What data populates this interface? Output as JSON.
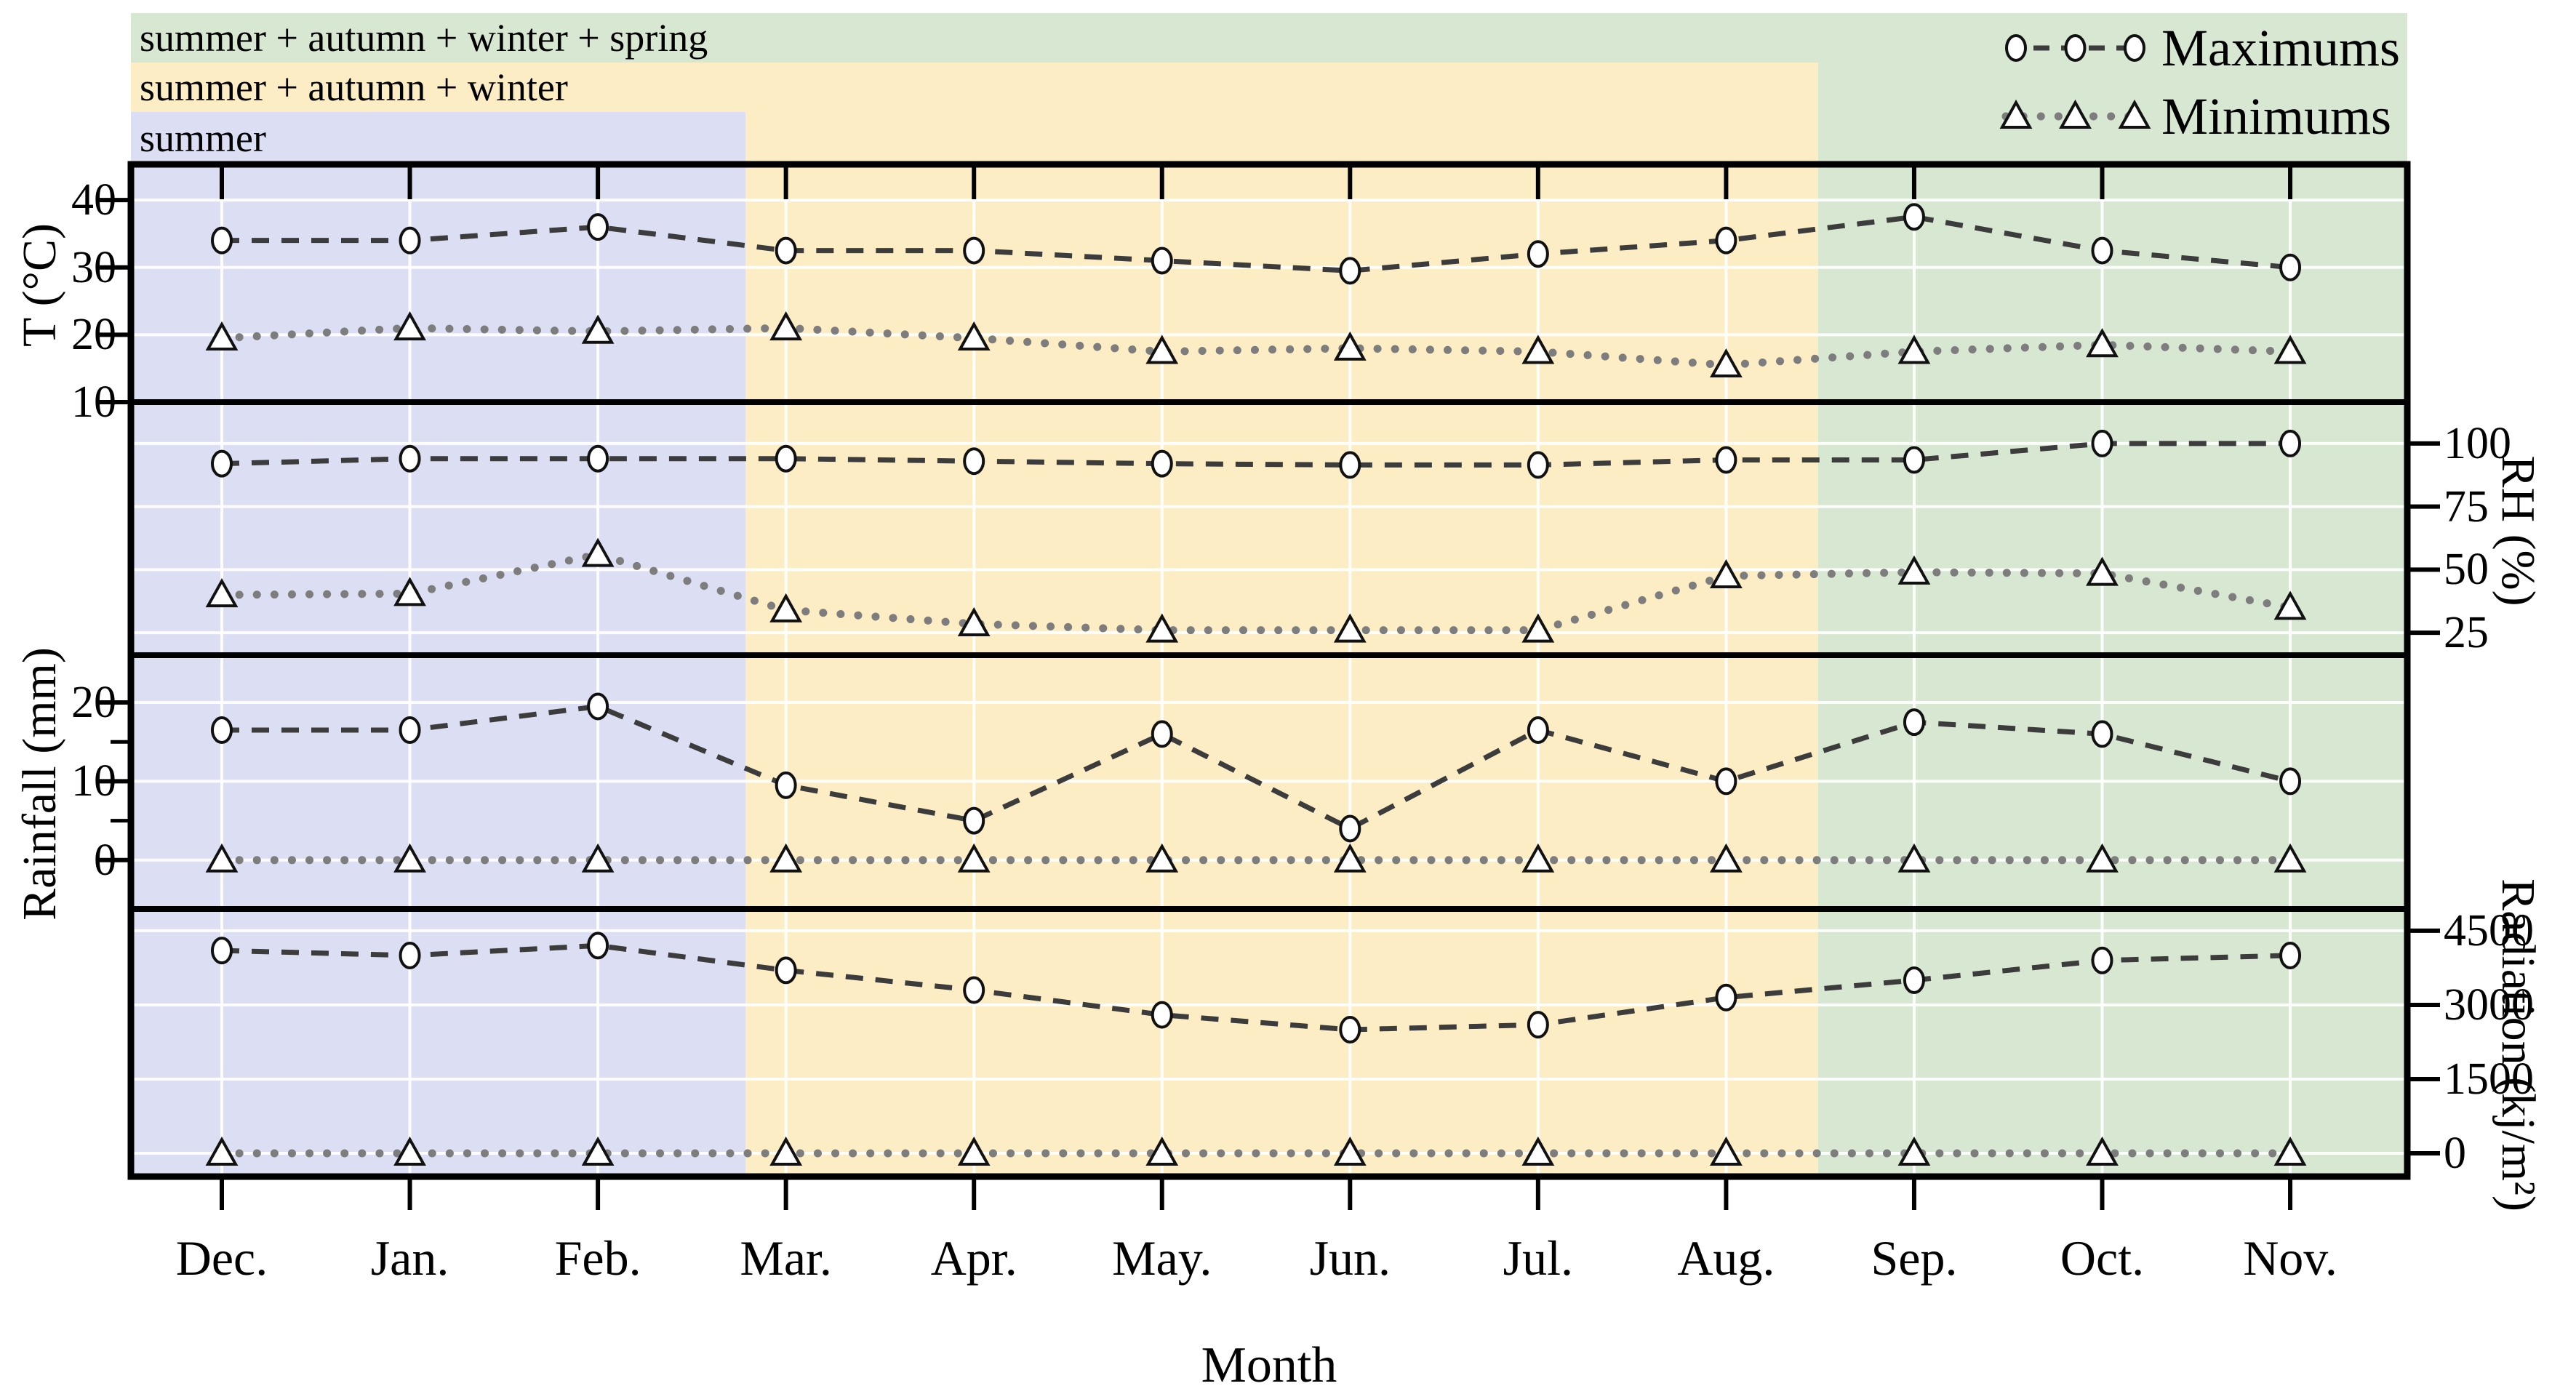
{
  "figure": {
    "xlabel": "Month",
    "months": [
      "Dec.",
      "Jan.",
      "Feb.",
      "Mar.",
      "Apr.",
      "May.",
      "Jun.",
      "Jul.",
      "Aug.",
      "Sep.",
      "Oct.",
      "Nov."
    ],
    "legend": [
      {
        "label": "Maximums",
        "marker": "circle-icon",
        "line_style": "dashed",
        "line_color": "#3c3c3c"
      },
      {
        "label": "Minimums",
        "marker": "triangle-icon",
        "line_style": "dotted",
        "line_color": "#7d7d7d"
      }
    ],
    "bands": [
      {
        "label": "summer + autumn + winter + spring",
        "color": "#d7e7d2",
        "covers": "Dec.-Nov."
      },
      {
        "label": "summer + autumn + winter",
        "color": "#fdedc5",
        "covers": "Dec.-Aug."
      },
      {
        "label": "summer",
        "color": "#dcdff4",
        "covers": "Dec.-Feb."
      }
    ],
    "colors": {
      "max_line": "#3c3c3c",
      "min_line": "#7d7d7d",
      "marker_fill": "#ffffff",
      "marker_stroke": "#111111",
      "gridline": "#ffffff",
      "frame": "#000000"
    }
  },
  "chart_data": [
    {
      "type": "line",
      "panel": "temperature",
      "ylabel": "T (°C)",
      "axis_side": "left",
      "categories": [
        "Dec.",
        "Jan.",
        "Feb.",
        "Mar.",
        "Apr.",
        "May.",
        "Jun.",
        "Jul.",
        "Aug.",
        "Sep.",
        "Oct.",
        "Nov."
      ],
      "yticks": [
        40,
        30,
        20,
        10
      ],
      "ylim": [
        10,
        45.3
      ],
      "grid": true,
      "series": [
        {
          "name": "Maximums",
          "values": [
            34,
            34,
            36,
            32.5,
            32.5,
            31,
            29.5,
            32,
            34,
            37.5,
            32.5,
            30
          ]
        },
        {
          "name": "Minimums",
          "values": [
            19.5,
            21,
            20.5,
            21,
            19.5,
            17.5,
            18,
            17.5,
            15.5,
            17.5,
            18.5,
            17.5
          ]
        }
      ]
    },
    {
      "type": "line",
      "panel": "relative-humidity",
      "ylabel": "RH (%)",
      "axis_side": "right",
      "categories": [
        "Dec.",
        "Jan.",
        "Feb.",
        "Mar.",
        "Apr.",
        "May.",
        "Jun.",
        "Jul.",
        "Aug.",
        "Sep.",
        "Oct.",
        "Nov."
      ],
      "yticks": [
        100,
        75,
        50,
        25
      ],
      "ylim": [
        16.1,
        116.4
      ],
      "grid": true,
      "series": [
        {
          "name": "Maximums",
          "values": [
            92,
            94,
            94,
            94,
            93,
            92,
            91.5,
            91.5,
            93.5,
            93.5,
            100,
            100
          ]
        },
        {
          "name": "Minimums",
          "values": [
            40,
            40.5,
            56,
            34,
            28.5,
            26,
            26,
            26,
            47.5,
            49,
            48.5,
            35
          ]
        }
      ]
    },
    {
      "type": "line",
      "panel": "rainfall",
      "ylabel": "Rainfall (mm)",
      "axis_side": "left",
      "categories": [
        "Dec.",
        "Jan.",
        "Feb.",
        "Mar.",
        "Apr.",
        "May.",
        "Jun.",
        "Jul.",
        "Aug.",
        "Sep.",
        "Oct.",
        "Nov."
      ],
      "yticks": [
        20,
        10,
        0
      ],
      "yticks_minor": [
        15,
        5
      ],
      "ylim": [
        -6.2,
        26
      ],
      "grid": true,
      "series": [
        {
          "name": "Maximums",
          "values": [
            16.5,
            16.5,
            19.5,
            9.5,
            5,
            16,
            4,
            16.5,
            10,
            17.5,
            16,
            10
          ]
        },
        {
          "name": "Minimums",
          "values": [
            0,
            0,
            0,
            0,
            0,
            0,
            0,
            0,
            0,
            0,
            0,
            0
          ]
        }
      ]
    },
    {
      "type": "line",
      "panel": "radiation",
      "ylabel": "Radiation (kj/m²)",
      "axis_side": "right",
      "categories": [
        "Dec.",
        "Jan.",
        "Feb.",
        "Mar.",
        "Apr.",
        "May.",
        "Jun.",
        "Jul.",
        "Aug.",
        "Sep.",
        "Oct.",
        "Nov."
      ],
      "yticks": [
        4500,
        3000,
        1500,
        0
      ],
      "ylim": [
        -470,
        4940
      ],
      "grid": true,
      "series": [
        {
          "name": "Maximums",
          "values": [
            4100,
            4000,
            4200,
            3700,
            3300,
            2800,
            2500,
            2600,
            3150,
            3500,
            3900,
            4000
          ]
        },
        {
          "name": "Minimums",
          "values": [
            0,
            0,
            0,
            0,
            0,
            0,
            0,
            0,
            0,
            0,
            0,
            0
          ]
        }
      ]
    }
  ]
}
